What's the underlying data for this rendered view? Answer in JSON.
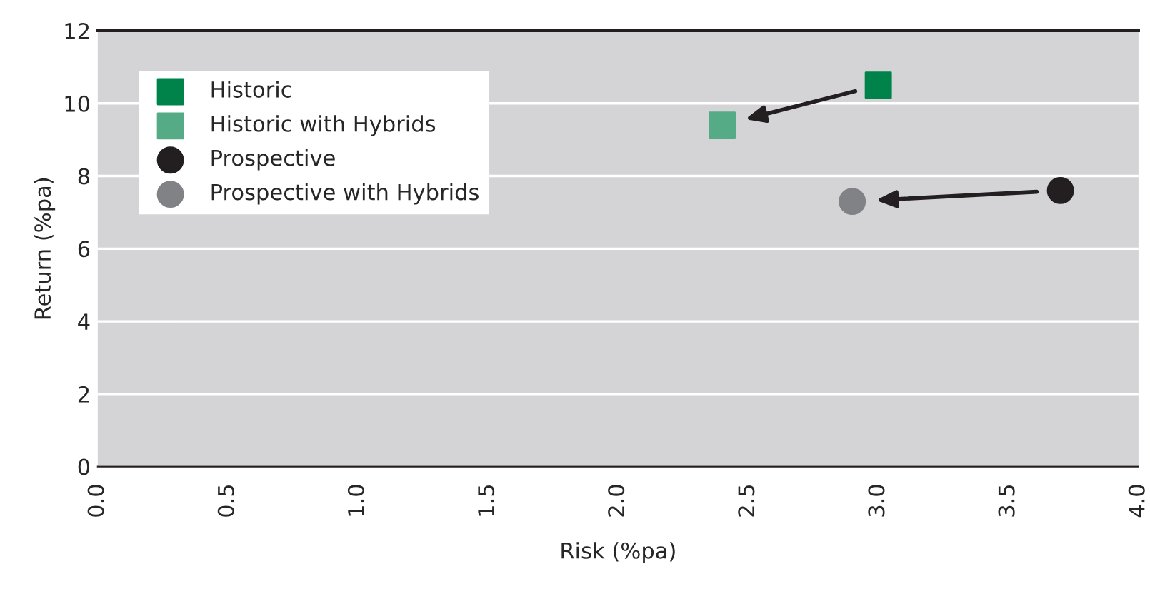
{
  "chart_data": {
    "type": "scatter",
    "xlabel": "Risk (%pa)",
    "ylabel": "Return (%pa)",
    "series": [
      {
        "name": "Historic",
        "color": "#00834a",
        "marker": "square",
        "x": [
          3.0
        ],
        "values": [
          10.5
        ]
      },
      {
        "name": "Historic with Hybrids",
        "color": "#55ab85",
        "marker": "square",
        "x": [
          2.4
        ],
        "values": [
          9.4
        ]
      },
      {
        "name": "Prospective",
        "color": "#231f20",
        "marker": "circle",
        "x": [
          3.7
        ],
        "values": [
          7.6
        ]
      },
      {
        "name": "Prospective with Hybrids",
        "color": "#808285",
        "marker": "circle",
        "x": [
          2.9
        ],
        "values": [
          7.3
        ]
      }
    ],
    "xlim": [
      0,
      4
    ],
    "xticks": [
      {
        "value": 0,
        "label": "0.0"
      },
      0.5,
      {
        "value": 1,
        "label": "1.0"
      },
      1.5,
      {
        "value": 2,
        "label": "2.0"
      },
      2.5,
      {
        "value": 3,
        "label": "3.0"
      },
      3.5,
      {
        "value": 4,
        "label": "4.0"
      }
    ],
    "ylim": [
      0,
      12
    ],
    "yticks": [
      0,
      2,
      4,
      6,
      8,
      10,
      12
    ],
    "grid": "y",
    "legend": "top left"
  }
}
